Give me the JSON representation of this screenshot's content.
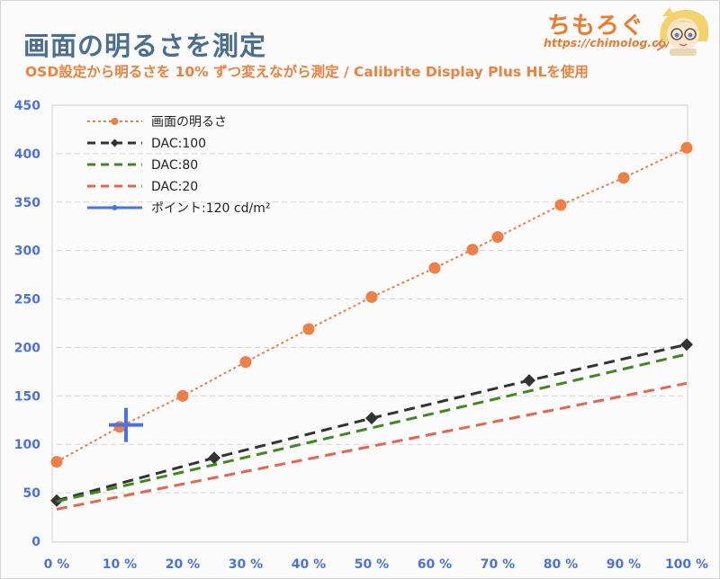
{
  "header": {
    "title": "画面の明るさを測定",
    "subtitle": "OSD設定から明るさを 10% ずつ変えながら測定 / Calibrite Display Plus HLを使用",
    "brand_name": "ちもろぐ",
    "brand_url": "https://chimolog.co/"
  },
  "colors": {
    "title": "#4a6f8e",
    "subtitle": "#f0803a",
    "brightness_series": "#ef7f45",
    "dac100_series": "#333333",
    "dac80_series": "#3f8a1f",
    "dac20_series": "#e8654a",
    "point_series": "#4a72e0",
    "ticks": "#4a72e0",
    "grid": "#d5d5d5"
  },
  "chart_data": {
    "type": "line",
    "xlim": [
      0,
      100
    ],
    "ylim": [
      0,
      450
    ],
    "x_ticks": [
      "0 %",
      "10 %",
      "20 %",
      "30 %",
      "40 %",
      "50 %",
      "60 %",
      "70 %",
      "80 %",
      "90 %",
      "100 %"
    ],
    "y_ticks": [
      "450",
      "400",
      "350",
      "300",
      "250",
      "200",
      "150",
      "100",
      "50",
      "0"
    ],
    "grid": "horizontal",
    "legend_position": "top-left",
    "series": [
      {
        "name": "画面の明るさ",
        "style": "dotted-with-circles",
        "color_key": "brightness_series",
        "points": [
          [
            0,
            82
          ],
          [
            10,
            118
          ],
          [
            20,
            150
          ],
          [
            30,
            185
          ],
          [
            40,
            219
          ],
          [
            50,
            252
          ],
          [
            60,
            282
          ],
          [
            66,
            301
          ],
          [
            70,
            314
          ],
          [
            80,
            347
          ],
          [
            90,
            375
          ],
          [
            100,
            406
          ]
        ]
      },
      {
        "name": "DAC:100",
        "style": "dashed-with-diamonds",
        "color_key": "dac100_series",
        "points": [
          [
            0,
            42
          ],
          [
            25,
            86
          ],
          [
            50,
            127
          ],
          [
            75,
            166
          ],
          [
            100,
            203
          ]
        ]
      },
      {
        "name": "DAC:80",
        "style": "dashed",
        "color_key": "dac80_series",
        "points": [
          [
            0,
            41
          ],
          [
            100,
            193
          ]
        ]
      },
      {
        "name": "DAC:20",
        "style": "dashed",
        "color_key": "dac20_series",
        "points": [
          [
            0,
            33
          ],
          [
            100,
            163
          ]
        ]
      },
      {
        "name": "ポイント:120 cd/m²",
        "style": "cross-marker",
        "color_key": "point_series",
        "points": [
          [
            11,
            120
          ]
        ]
      }
    ]
  }
}
